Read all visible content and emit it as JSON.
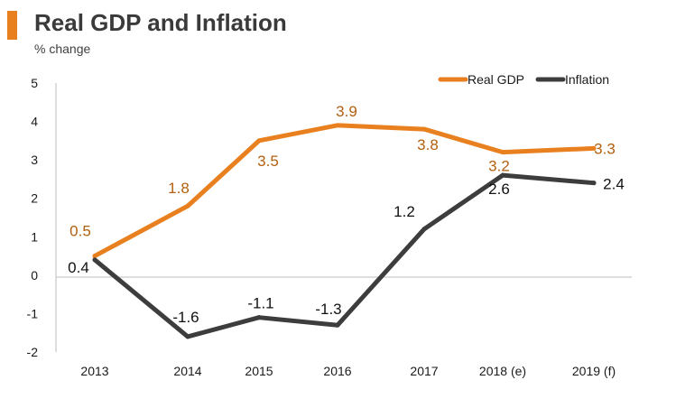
{
  "chart_data": {
    "type": "line",
    "title": "Real GDP and Inflation",
    "subtitle": "% change",
    "categories": [
      "2013",
      "2014",
      "2015",
      "2016",
      "2017",
      "2018 (e)",
      "2019 (f)"
    ],
    "series": [
      {
        "name": "Real GDP",
        "values": [
          0.5,
          1.8,
          3.5,
          3.9,
          3.8,
          3.2,
          3.3
        ],
        "color": "#e8801f",
        "label_color": "#b35f0e"
      },
      {
        "name": "Inflation",
        "values": [
          0.4,
          -1.6,
          -1.1,
          -1.3,
          1.2,
          2.6,
          2.4
        ],
        "color": "#3d3d3d",
        "label_color": "#111111"
      }
    ],
    "ylim": [
      -2,
      5
    ],
    "yticks": [
      "5",
      "4",
      "3",
      "2",
      "1",
      "0",
      "-1",
      "-2"
    ],
    "data_labels": {
      "Real GDP": [
        "0.5",
        "1.8",
        "3.5",
        "3.9",
        "3.8",
        "3.2",
        "3.3"
      ],
      "Inflation": [
        "0.4",
        "-1.6",
        "-1.1",
        "-1.3",
        "1.2",
        "2.6",
        "2.4"
      ]
    },
    "legend_position": "top-right",
    "grid": false
  }
}
